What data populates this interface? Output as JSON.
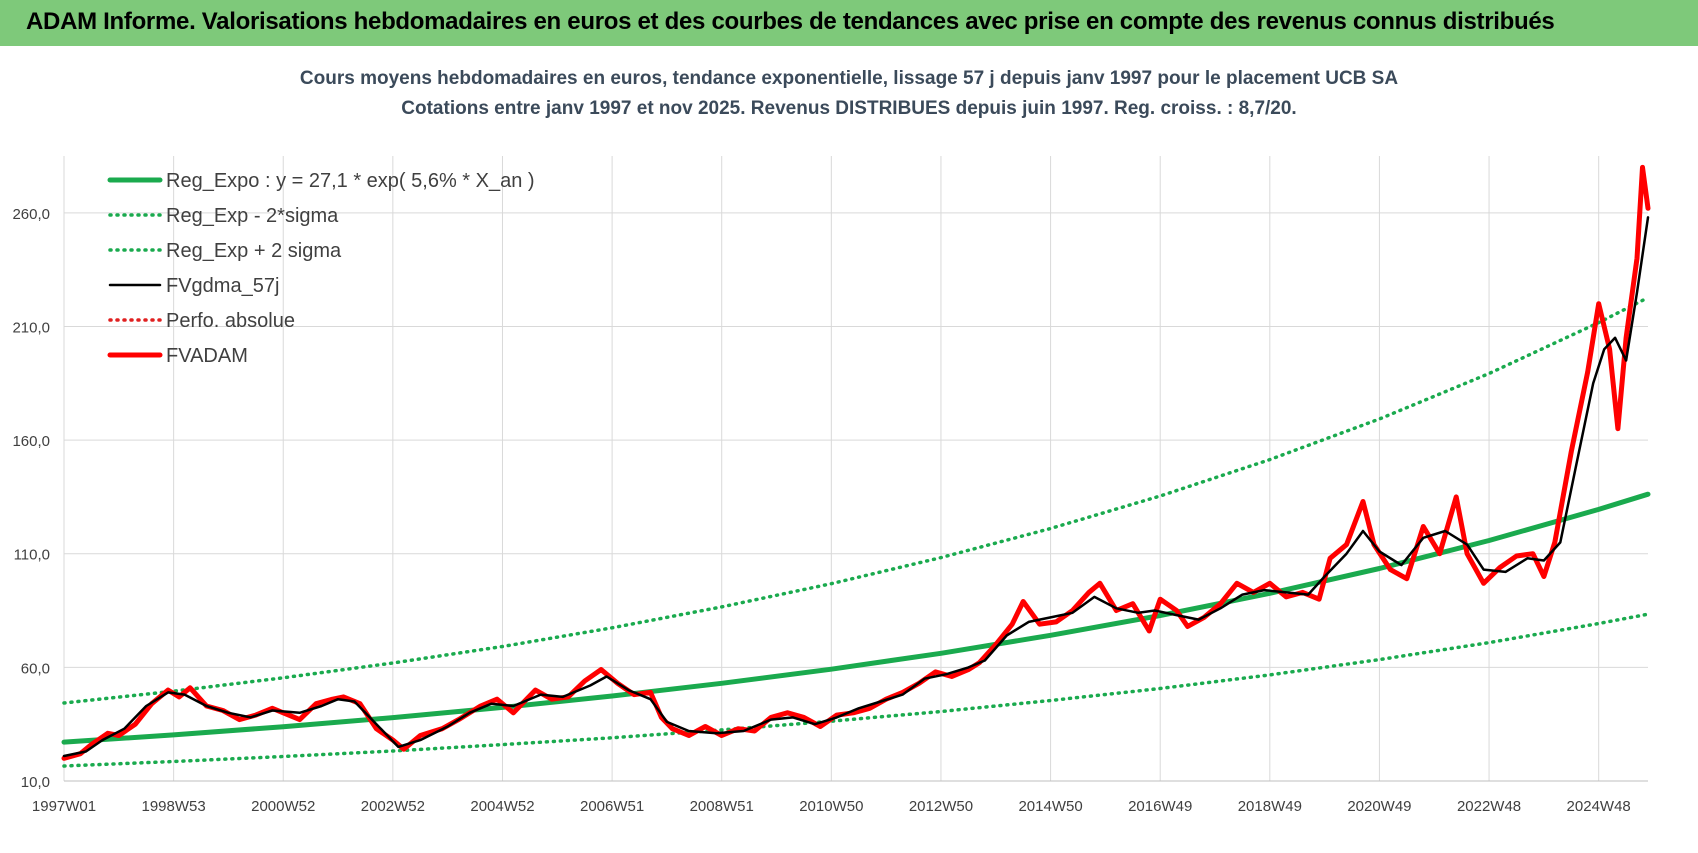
{
  "header": {
    "title": "ADAM Informe. Valorisations hebdomadaires en euros et des courbes de tendances avec prise en compte des revenus connus distribués"
  },
  "colors": {
    "banner": "#7ec97a",
    "reg_expo": "#1aaa4e",
    "fvgdma": "#000000",
    "fvadam": "#ff0000",
    "perfo": "#e02020",
    "grid": "#d9d9d9"
  },
  "chart_data": {
    "type": "line",
    "title": "Cours moyens hebdomadaires en euros, tendance exponentielle, lissage 57 j depuis janv 1997 pour le placement UCB SA",
    "subtitle": "Cotations entre janv 1997 et nov 2025. Revenus DISTRIBUES depuis juin 1997. Reg. croiss. : 8,7/20.",
    "xlabel": "",
    "ylabel": "",
    "ylim": [
      10,
      285
    ],
    "y_ticks": [
      "10,0",
      "60,0",
      "110,0",
      "160,0",
      "210,0",
      "260,0"
    ],
    "x_range": [
      1997.0,
      2025.9
    ],
    "x_ticks": [
      {
        "label": "1997W01",
        "year": 1997.0
      },
      {
        "label": "1998W53",
        "year": 1999.0
      },
      {
        "label": "2000W52",
        "year": 2001.0
      },
      {
        "label": "2002W52",
        "year": 2003.0
      },
      {
        "label": "2004W52",
        "year": 2005.0
      },
      {
        "label": "2006W51",
        "year": 2007.0
      },
      {
        "label": "2008W51",
        "year": 2009.0
      },
      {
        "label": "2010W50",
        "year": 2011.0
      },
      {
        "label": "2012W50",
        "year": 2013.0
      },
      {
        "label": "2014W50",
        "year": 2015.0
      },
      {
        "label": "2016W49",
        "year": 2017.0
      },
      {
        "label": "2018W49",
        "year": 2019.0
      },
      {
        "label": "2020W49",
        "year": 2021.0
      },
      {
        "label": "2022W48",
        "year": 2023.0
      },
      {
        "label": "2024W48",
        "year": 2025.0
      }
    ],
    "grid": true,
    "legend_position": "top-left",
    "series": [
      {
        "name": "Reg_Expo : y = 27,1 * exp( 5,6% *  X_an )",
        "style": "solid-thick",
        "color": "#1aaa4e",
        "points": [
          [
            1997.0,
            27.1
          ],
          [
            1999.0,
            30.3
          ],
          [
            2001.0,
            33.9
          ],
          [
            2003.0,
            37.9
          ],
          [
            2005.0,
            42.4
          ],
          [
            2007.0,
            47.4
          ],
          [
            2009.0,
            53.0
          ],
          [
            2011.0,
            59.2
          ],
          [
            2013.0,
            66.2
          ],
          [
            2015.0,
            74.1
          ],
          [
            2017.0,
            82.8
          ],
          [
            2019.0,
            92.6
          ],
          [
            2021.0,
            103.5
          ],
          [
            2023.0,
            115.8
          ],
          [
            2025.0,
            129.5
          ],
          [
            2025.9,
            136.2
          ]
        ]
      },
      {
        "name": "Reg_Exp - 2*sigma",
        "style": "dotted",
        "color": "#1aaa4e",
        "points": [
          [
            1997.0,
            16.6
          ],
          [
            1999.0,
            18.6
          ],
          [
            2001.0,
            20.8
          ],
          [
            2003.0,
            23.2
          ],
          [
            2005.0,
            26.0
          ],
          [
            2007.0,
            29.0
          ],
          [
            2009.0,
            32.5
          ],
          [
            2011.0,
            36.3
          ],
          [
            2013.0,
            40.6
          ],
          [
            2015.0,
            45.4
          ],
          [
            2017.0,
            50.7
          ],
          [
            2019.0,
            56.7
          ],
          [
            2021.0,
            63.4
          ],
          [
            2023.0,
            70.9
          ],
          [
            2025.0,
            79.3
          ],
          [
            2025.9,
            83.4
          ]
        ]
      },
      {
        "name": "Reg_Exp + 2 sigma",
        "style": "dotted",
        "color": "#1aaa4e",
        "points": [
          [
            1997.0,
            44.3
          ],
          [
            1999.0,
            49.5
          ],
          [
            2001.0,
            55.4
          ],
          [
            2003.0,
            61.9
          ],
          [
            2005.0,
            69.2
          ],
          [
            2007.0,
            77.4
          ],
          [
            2009.0,
            86.6
          ],
          [
            2011.0,
            96.8
          ],
          [
            2013.0,
            108.3
          ],
          [
            2015.0,
            121.1
          ],
          [
            2017.0,
            135.4
          ],
          [
            2019.0,
            151.4
          ],
          [
            2021.0,
            169.3
          ],
          [
            2023.0,
            189.3
          ],
          [
            2025.0,
            211.7
          ],
          [
            2025.9,
            222.7
          ]
        ]
      },
      {
        "name": "FVgdma_57j",
        "style": "solid",
        "color": "#000000",
        "points": [
          [
            1997.0,
            21
          ],
          [
            1997.4,
            23
          ],
          [
            1997.7,
            28
          ],
          [
            1998.1,
            33
          ],
          [
            1998.5,
            43
          ],
          [
            1998.9,
            49
          ],
          [
            1999.2,
            48
          ],
          [
            1999.6,
            43
          ],
          [
            2000.0,
            40
          ],
          [
            2000.4,
            38
          ],
          [
            2000.8,
            41
          ],
          [
            2001.3,
            40
          ],
          [
            2001.7,
            43
          ],
          [
            2002.0,
            46
          ],
          [
            2002.3,
            45
          ],
          [
            2002.7,
            35
          ],
          [
            2003.1,
            25
          ],
          [
            2003.5,
            28
          ],
          [
            2004.0,
            34
          ],
          [
            2004.4,
            40
          ],
          [
            2004.8,
            44
          ],
          [
            2005.2,
            43
          ],
          [
            2005.7,
            48
          ],
          [
            2006.1,
            47
          ],
          [
            2006.6,
            52
          ],
          [
            2006.9,
            56
          ],
          [
            2007.3,
            50
          ],
          [
            2007.7,
            46
          ],
          [
            2008.0,
            36
          ],
          [
            2008.4,
            32
          ],
          [
            2008.9,
            31
          ],
          [
            2009.4,
            32
          ],
          [
            2009.9,
            37
          ],
          [
            2010.3,
            38
          ],
          [
            2010.7,
            35
          ],
          [
            2011.1,
            38
          ],
          [
            2011.5,
            42
          ],
          [
            2011.9,
            45
          ],
          [
            2012.3,
            48
          ],
          [
            2012.7,
            55
          ],
          [
            2013.1,
            57
          ],
          [
            2013.5,
            60
          ],
          [
            2013.8,
            63
          ],
          [
            2014.2,
            74
          ],
          [
            2014.6,
            80
          ],
          [
            2015.0,
            82
          ],
          [
            2015.4,
            84
          ],
          [
            2015.8,
            91
          ],
          [
            2016.2,
            86
          ],
          [
            2016.6,
            84
          ],
          [
            2016.9,
            85
          ],
          [
            2017.3,
            83
          ],
          [
            2017.7,
            81
          ],
          [
            2018.1,
            86
          ],
          [
            2018.5,
            92
          ],
          [
            2018.9,
            94
          ],
          [
            2019.3,
            93
          ],
          [
            2019.7,
            92
          ],
          [
            2020.0,
            100
          ],
          [
            2020.4,
            110
          ],
          [
            2020.7,
            120
          ],
          [
            2021.0,
            111
          ],
          [
            2021.4,
            105
          ],
          [
            2021.8,
            117
          ],
          [
            2022.2,
            120
          ],
          [
            2022.6,
            114
          ],
          [
            2022.9,
            103
          ],
          [
            2023.3,
            102
          ],
          [
            2023.7,
            108
          ],
          [
            2024.0,
            107
          ],
          [
            2024.3,
            115
          ],
          [
            2024.6,
            150
          ],
          [
            2024.9,
            185
          ],
          [
            2025.1,
            200
          ],
          [
            2025.3,
            205
          ],
          [
            2025.5,
            195
          ],
          [
            2025.7,
            225
          ],
          [
            2025.9,
            258
          ]
        ]
      },
      {
        "name": "Perfo. absolue",
        "style": "dotted",
        "color": "#e02020",
        "points": []
      },
      {
        "name": "FVADAM",
        "style": "solid-thick",
        "color": "#ff0000",
        "points": [
          [
            1997.0,
            20
          ],
          [
            1997.3,
            22
          ],
          [
            1997.5,
            26
          ],
          [
            1997.8,
            31
          ],
          [
            1998.0,
            30
          ],
          [
            1998.3,
            35
          ],
          [
            1998.6,
            44
          ],
          [
            1998.9,
            50
          ],
          [
            1999.1,
            47
          ],
          [
            1999.3,
            51
          ],
          [
            1999.6,
            43
          ],
          [
            1999.9,
            41
          ],
          [
            2000.2,
            37
          ],
          [
            2000.5,
            39
          ],
          [
            2000.8,
            42
          ],
          [
            2001.0,
            40
          ],
          [
            2001.3,
            37
          ],
          [
            2001.6,
            44
          ],
          [
            2001.9,
            46
          ],
          [
            2002.1,
            47
          ],
          [
            2002.4,
            44
          ],
          [
            2002.7,
            33
          ],
          [
            2003.0,
            28
          ],
          [
            2003.2,
            24
          ],
          [
            2003.5,
            30
          ],
          [
            2003.9,
            33
          ],
          [
            2004.2,
            37
          ],
          [
            2004.6,
            43
          ],
          [
            2004.9,
            46
          ],
          [
            2005.2,
            40
          ],
          [
            2005.6,
            50
          ],
          [
            2005.9,
            46
          ],
          [
            2006.2,
            47
          ],
          [
            2006.5,
            54
          ],
          [
            2006.8,
            59
          ],
          [
            2007.1,
            53
          ],
          [
            2007.4,
            48
          ],
          [
            2007.7,
            49
          ],
          [
            2007.9,
            38
          ],
          [
            2008.1,
            33
          ],
          [
            2008.4,
            30
          ],
          [
            2008.7,
            34
          ],
          [
            2009.0,
            30
          ],
          [
            2009.3,
            33
          ],
          [
            2009.6,
            32
          ],
          [
            2009.9,
            38
          ],
          [
            2010.2,
            40
          ],
          [
            2010.5,
            38
          ],
          [
            2010.8,
            34
          ],
          [
            2011.1,
            39
          ],
          [
            2011.4,
            40
          ],
          [
            2011.7,
            42
          ],
          [
            2012.0,
            46
          ],
          [
            2012.3,
            49
          ],
          [
            2012.6,
            53
          ],
          [
            2012.9,
            58
          ],
          [
            2013.2,
            56
          ],
          [
            2013.5,
            59
          ],
          [
            2013.7,
            62
          ],
          [
            2014.0,
            70
          ],
          [
            2014.3,
            79
          ],
          [
            2014.5,
            89
          ],
          [
            2014.8,
            79
          ],
          [
            2015.1,
            80
          ],
          [
            2015.4,
            85
          ],
          [
            2015.7,
            93
          ],
          [
            2015.9,
            97
          ],
          [
            2016.2,
            85
          ],
          [
            2016.5,
            88
          ],
          [
            2016.8,
            76
          ],
          [
            2017.0,
            90
          ],
          [
            2017.3,
            85
          ],
          [
            2017.5,
            78
          ],
          [
            2017.8,
            82
          ],
          [
            2018.1,
            88
          ],
          [
            2018.4,
            97
          ],
          [
            2018.7,
            93
          ],
          [
            2019.0,
            97
          ],
          [
            2019.3,
            91
          ],
          [
            2019.6,
            93
          ],
          [
            2019.9,
            90
          ],
          [
            2020.1,
            108
          ],
          [
            2020.4,
            114
          ],
          [
            2020.7,
            133
          ],
          [
            2020.9,
            114
          ],
          [
            2021.2,
            103
          ],
          [
            2021.5,
            99
          ],
          [
            2021.8,
            122
          ],
          [
            2022.1,
            110
          ],
          [
            2022.4,
            135
          ],
          [
            2022.6,
            110
          ],
          [
            2022.9,
            97
          ],
          [
            2023.2,
            104
          ],
          [
            2023.5,
            109
          ],
          [
            2023.8,
            110
          ],
          [
            2024.0,
            100
          ],
          [
            2024.2,
            115
          ],
          [
            2024.5,
            155
          ],
          [
            2024.8,
            190
          ],
          [
            2025.0,
            220
          ],
          [
            2025.2,
            200
          ],
          [
            2025.35,
            165
          ],
          [
            2025.5,
            205
          ],
          [
            2025.7,
            240
          ],
          [
            2025.8,
            280
          ],
          [
            2025.9,
            262
          ]
        ]
      }
    ]
  }
}
